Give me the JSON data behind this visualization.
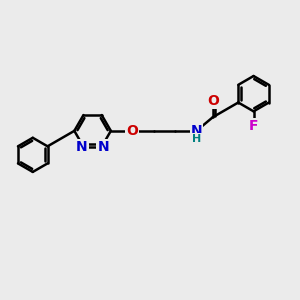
{
  "background_color": "#ebebeb",
  "bond_color": "#000000",
  "bond_width": 1.8,
  "atom_colors": {
    "N": "#0000cc",
    "O_carbonyl": "#cc0000",
    "O_ether": "#cc0000",
    "F": "#cc00cc",
    "H": "#008080",
    "C": "#000000"
  },
  "font_size_atom": 10,
  "figsize": [
    3.0,
    3.0
  ],
  "dpi": 100
}
